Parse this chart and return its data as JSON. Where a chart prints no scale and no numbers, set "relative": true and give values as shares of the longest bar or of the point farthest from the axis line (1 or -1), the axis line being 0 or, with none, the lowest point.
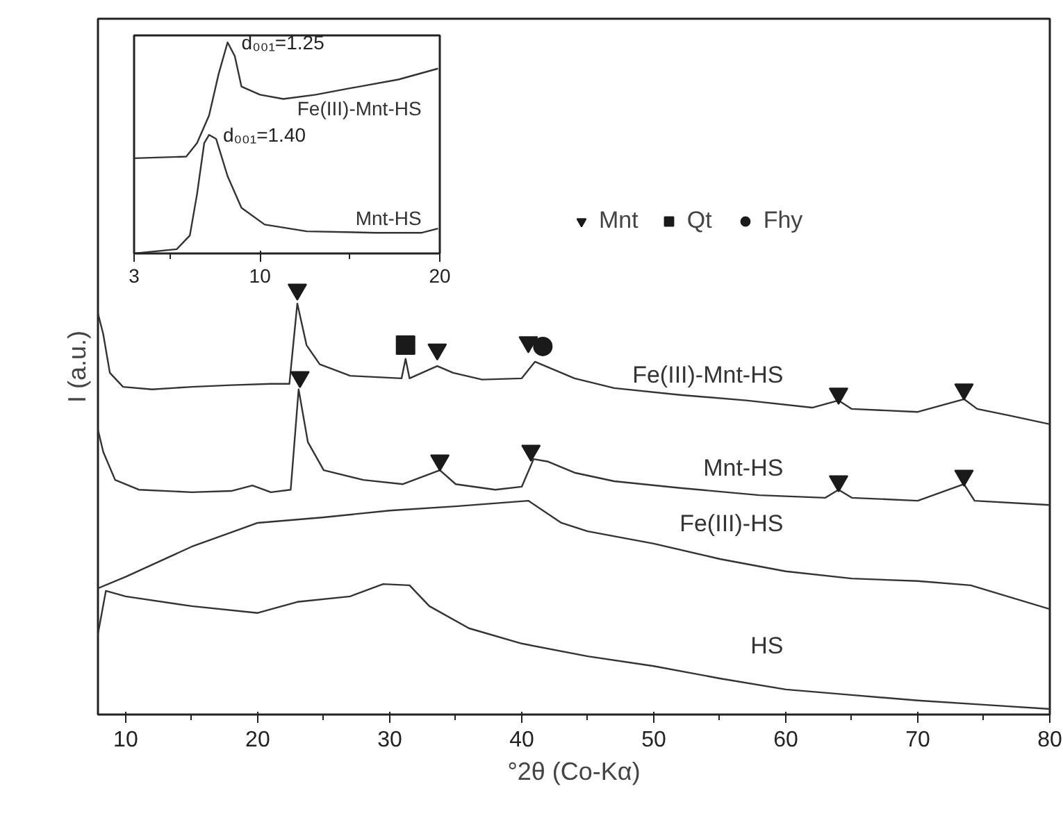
{
  "chart_data": [
    {
      "type": "line",
      "relative": true,
      "xlabel": "°2θ (Co-Kα)",
      "ylabel": "I (a.u.)",
      "xlim": [
        7.9,
        80
      ],
      "xticks": [
        10,
        {
          "value": 15,
          "label": null
        },
        20,
        {
          "value": 25,
          "label": null
        },
        30,
        {
          "value": 35,
          "label": null
        },
        40,
        {
          "value": 45,
          "label": null
        },
        50,
        {
          "value": 55,
          "label": null
        },
        60,
        {
          "value": 65,
          "label": null
        },
        70,
        {
          "value": 75,
          "label": null
        },
        80
      ],
      "tick_labels": "x",
      "grid": false,
      "legend": "top right",
      "series": [
        {
          "name": "Fe(III)-Mnt-HS",
          "color": "#333333",
          "x": [
            7.9,
            8.3,
            8.8,
            9.8,
            12,
            15,
            18,
            21,
            22.4,
            23.0,
            23.7,
            24.7,
            27,
            30.9,
            31.2,
            31.5,
            33.6,
            34.8,
            37,
            40,
            41,
            42,
            44,
            47,
            52,
            57,
            62,
            64,
            65,
            70,
            73.5,
            74.5,
            77,
            80
          ],
          "values": [
            0.944,
            0.895,
            0.804,
            0.771,
            0.765,
            0.771,
            0.775,
            0.778,
            0.778,
            0.967,
            0.869,
            0.824,
            0.797,
            0.791,
            0.837,
            0.791,
            0.82,
            0.804,
            0.788,
            0.791,
            0.83,
            0.817,
            0.791,
            0.768,
            0.752,
            0.739,
            0.722,
            0.739,
            0.719,
            0.712,
            0.742,
            0.719,
            0.703,
            0.683
          ]
        },
        {
          "name": "Mnt-HS",
          "color": "#333333",
          "x": [
            7.9,
            8.3,
            9.2,
            11,
            15,
            18,
            19.6,
            21,
            22.5,
            23.1,
            23.8,
            25,
            28,
            31,
            33.8,
            35,
            38,
            40,
            40.9,
            42,
            44,
            47,
            52,
            58,
            63,
            64,
            65,
            70,
            73.5,
            74.3,
            80
          ],
          "values": [
            0.67,
            0.618,
            0.552,
            0.529,
            0.523,
            0.526,
            0.539,
            0.523,
            0.529,
            0.765,
            0.641,
            0.575,
            0.552,
            0.542,
            0.575,
            0.542,
            0.529,
            0.536,
            0.601,
            0.595,
            0.569,
            0.549,
            0.533,
            0.516,
            0.51,
            0.529,
            0.51,
            0.503,
            0.542,
            0.503,
            0.493
          ]
        },
        {
          "name": "Fe(III)-HS",
          "color": "#333333",
          "x": [
            7.9,
            10,
            15,
            20,
            25,
            30,
            35,
            40.5,
            43,
            45,
            50,
            55,
            60,
            65,
            70,
            74,
            80
          ],
          "values": [
            0.297,
            0.324,
            0.395,
            0.451,
            0.464,
            0.48,
            0.49,
            0.503,
            0.451,
            0.431,
            0.402,
            0.366,
            0.337,
            0.32,
            0.314,
            0.304,
            0.248
          ]
        },
        {
          "name": "HS",
          "color": "#333333",
          "x": [
            7.9,
            8.5,
            10,
            15,
            20,
            23,
            27,
            29.5,
            31.5,
            33,
            36,
            40,
            45,
            50,
            55,
            60,
            65,
            70,
            75,
            80
          ],
          "values": [
            0.19,
            0.291,
            0.278,
            0.255,
            0.239,
            0.265,
            0.278,
            0.307,
            0.304,
            0.255,
            0.203,
            0.167,
            0.137,
            0.114,
            0.085,
            0.059,
            0.046,
            0.033,
            0.023,
            0.013
          ]
        },
        {
          "name": "Mnt",
          "type": "scatter",
          "marker": "triangle",
          "color": "#1a1a1a",
          "x": [
            23.0,
            33.6,
            40.5,
            64.0,
            73.5,
            23.2,
            33.8,
            40.7,
            64.0,
            73.5
          ],
          "values": [
            1.0,
            0.859,
            0.876,
            0.755,
            0.765,
            0.794,
            0.598,
            0.621,
            0.549,
            0.562
          ]
        },
        {
          "name": "Qt",
          "type": "scatter",
          "marker": "square",
          "color": "#1a1a1a",
          "x": [
            31.2
          ],
          "values": [
            0.869
          ]
        },
        {
          "name": "Fhy",
          "type": "scatter",
          "marker": "circle",
          "color": "#1a1a1a",
          "x": [
            41.6
          ],
          "values": [
            0.866
          ]
        }
      ]
    },
    {
      "type": "line",
      "relative": true,
      "xlim": [
        3,
        20
      ],
      "xticks": [
        3,
        {
          "value": 5,
          "label": null
        },
        10,
        {
          "value": 15,
          "label": null
        },
        20
      ],
      "tick_labels": "x",
      "grid": false,
      "annotations": [
        {
          "text": "d₀₀₁=1.25",
          "x": 8.2,
          "y": 1.0
        },
        {
          "text": "d₀₀₁=1.40",
          "x": 7.17,
          "y": 0.562
        }
      ],
      "series": [
        {
          "name": "Fe(III)-Mnt-HS",
          "color": "#333333",
          "x": [
            3.0,
            5.9,
            6.5,
            7.17,
            7.7,
            8.2,
            8.6,
            8.97,
            10.0,
            11.3,
            13.1,
            15.1,
            17.7,
            19.9
          ],
          "values": [
            0.451,
            0.459,
            0.523,
            0.654,
            0.85,
            1.0,
            0.935,
            0.791,
            0.752,
            0.732,
            0.752,
            0.784,
            0.824,
            0.876
          ]
        },
        {
          "name": "Mnt-HS",
          "color": "#333333",
          "x": [
            3.0,
            5.37,
            6.1,
            6.5,
            6.9,
            7.17,
            7.56,
            8.2,
            8.97,
            10.26,
            12.6,
            16.4,
            19.0,
            19.9
          ],
          "values": [
            0.0,
            0.02,
            0.085,
            0.281,
            0.523,
            0.562,
            0.543,
            0.366,
            0.216,
            0.137,
            0.105,
            0.098,
            0.098,
            0.118
          ]
        }
      ]
    }
  ]
}
